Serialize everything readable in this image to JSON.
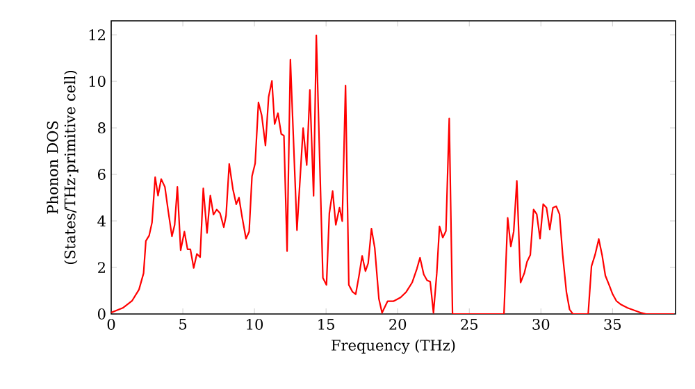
{
  "chart_data": {
    "type": "line",
    "xlabel": "Frequency (THz)",
    "ylabel": "Phonon DOS (States/THz·primitive cell)",
    "color": "#ff0000",
    "xlim": [
      0,
      39.4
    ],
    "ylim": [
      0,
      12.6
    ],
    "xticks": [
      0,
      5,
      10,
      15,
      20,
      25,
      30,
      35
    ],
    "yticks": [
      0,
      2,
      4,
      6,
      8,
      10,
      12
    ],
    "x": [
      0,
      0.81,
      1.45,
      1.94,
      2.26,
      2.42,
      2.65,
      2.85,
      3.07,
      3.27,
      3.49,
      3.75,
      3.98,
      4.24,
      4.43,
      4.62,
      4.85,
      5.11,
      5.33,
      5.53,
      5.76,
      5.98,
      6.21,
      6.43,
      6.69,
      6.92,
      7.14,
      7.37,
      7.6,
      7.86,
      8.02,
      8.24,
      8.5,
      8.73,
      8.92,
      9.15,
      9.41,
      9.63,
      9.83,
      10.05,
      10.28,
      10.51,
      10.77,
      10.99,
      11.22,
      11.41,
      11.64,
      11.87,
      12.06,
      12.28,
      12.51,
      12.97,
      13.4,
      13.65,
      13.87,
      14.13,
      14.32,
      14.78,
      15.03,
      15.23,
      15.46,
      15.68,
      15.94,
      16.13,
      16.36,
      16.59,
      16.85,
      17.07,
      17.3,
      17.52,
      17.75,
      17.94,
      18.17,
      18.4,
      18.69,
      18.91,
      19.3,
      19.72,
      20.2,
      20.6,
      21.01,
      21.34,
      21.56,
      21.82,
      22.05,
      22.27,
      22.5,
      22.73,
      22.92,
      23.15,
      23.37,
      23.6,
      23.83,
      27.42,
      27.68,
      27.9,
      28.1,
      28.32,
      28.58,
      28.84,
      29.03,
      29.26,
      29.49,
      29.71,
      29.94,
      30.16,
      30.39,
      30.62,
      30.84,
      31.07,
      31.3,
      31.52,
      31.78,
      32.0,
      32.23,
      33.3,
      33.53,
      33.78,
      34.04,
      34.27,
      34.5,
      34.76,
      35.01,
      35.27,
      35.6,
      36.05,
      36.5,
      36.95,
      37.34,
      39.3
    ],
    "values": [
      0.06,
      0.26,
      0.56,
      1.05,
      1.75,
      3.14,
      3.37,
      3.93,
      5.88,
      5.09,
      5.8,
      5.46,
      4.43,
      3.34,
      3.83,
      5.46,
      2.74,
      3.54,
      2.78,
      2.78,
      1.98,
      2.58,
      2.44,
      5.4,
      3.48,
      5.09,
      4.27,
      4.49,
      4.33,
      3.73,
      4.23,
      6.45,
      5.36,
      4.72,
      5.0,
      4.13,
      3.24,
      3.54,
      5.92,
      6.47,
      9.09,
      8.53,
      7.24,
      9.33,
      10.02,
      8.16,
      8.63,
      7.74,
      7.66,
      2.7,
      10.93,
      3.6,
      7.99,
      6.4,
      9.63,
      5.08,
      11.98,
      1.55,
      1.25,
      4.33,
      5.28,
      3.83,
      4.57,
      3.99,
      9.82,
      1.25,
      0.95,
      0.85,
      1.64,
      2.5,
      1.84,
      2.18,
      3.67,
      2.84,
      0.65,
      0.05,
      0.55,
      0.55,
      0.71,
      0.95,
      1.35,
      1.94,
      2.42,
      1.7,
      1.45,
      1.39,
      0.05,
      1.75,
      3.77,
      3.28,
      3.57,
      8.4,
      0,
      0,
      4.13,
      2.9,
      3.54,
      5.72,
      1.35,
      1.75,
      2.24,
      2.54,
      4.49,
      4.29,
      3.24,
      4.72,
      4.57,
      3.63,
      4.57,
      4.63,
      4.29,
      2.54,
      0.95,
      0.2,
      0,
      0,
      2.05,
      2.54,
      3.22,
      2.54,
      1.65,
      1.25,
      0.85,
      0.56,
      0.4,
      0.26,
      0.16,
      0.06,
      0,
      0
    ]
  }
}
